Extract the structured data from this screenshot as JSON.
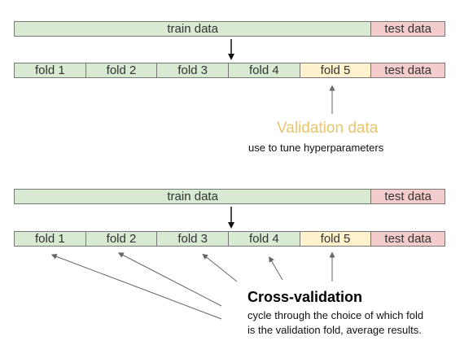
{
  "train_label": "train data",
  "test_label": "test data",
  "folds": [
    "fold 1",
    "fold 2",
    "fold 3",
    "fold 4",
    "fold 5"
  ],
  "validation": {
    "title": "Validation data",
    "subtitle": "use to tune hyperparameters",
    "color": "#e9c46a"
  },
  "cross_validation": {
    "title": "Cross-validation",
    "line1": "cycle through the choice of which fold",
    "line2": "is the validation fold, average results."
  },
  "colors": {
    "train": "#d9ead3",
    "validation_fold": "#fff2cc",
    "test": "#f4cccc",
    "border": "#777777"
  }
}
